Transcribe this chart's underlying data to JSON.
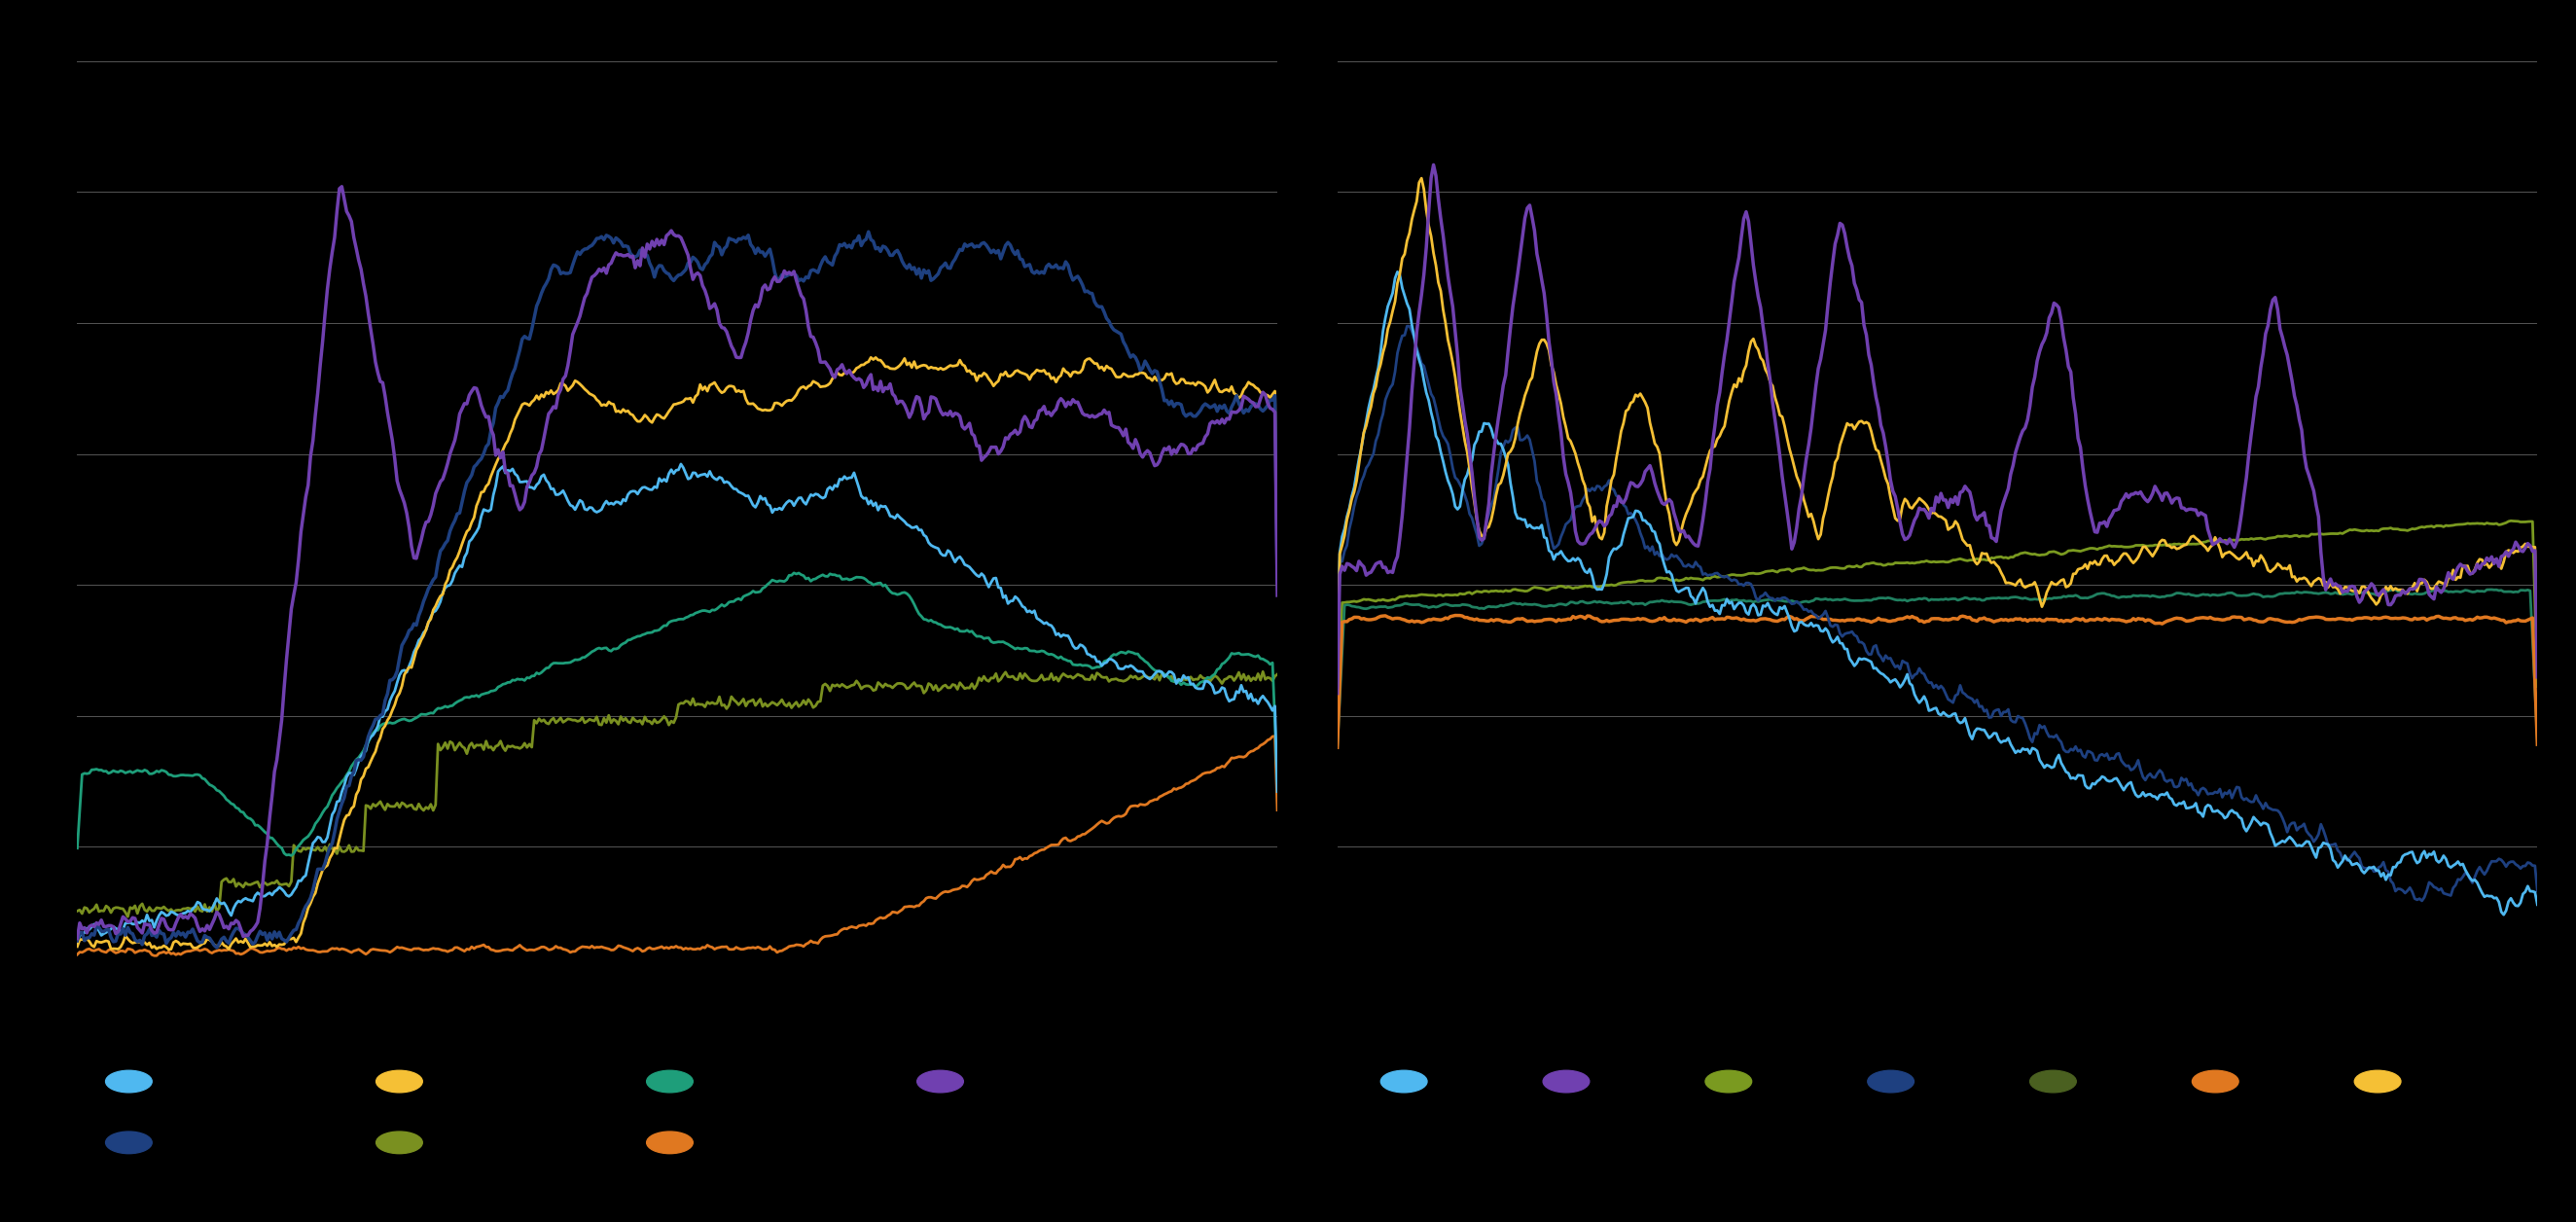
{
  "background_color": "#000000",
  "grid_color": "#555555",
  "chart1": {
    "colors": {
      "light_blue": "#4fb8f0",
      "dark_blue": "#1e4080",
      "yellow": "#f5c035",
      "green": "#1e9e7a",
      "olive": "#7a9020",
      "orange": "#e07820",
      "purple": "#7040b0"
    }
  },
  "chart2": {
    "colors": {
      "light_blue": "#4fb8f0",
      "purple": "#7040b0",
      "olive_green": "#7a9a20",
      "dark_blue": "#1e4080",
      "dark_teal": "#208060",
      "orange": "#e07820",
      "yellow": "#f5c035"
    }
  }
}
